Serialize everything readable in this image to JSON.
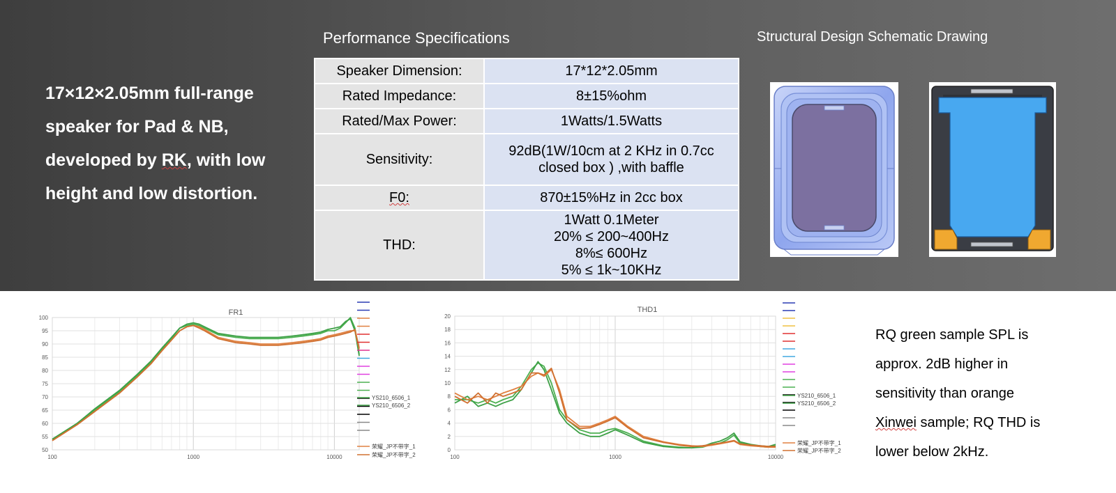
{
  "intro": {
    "line1": "17×12×2.05mm full-range",
    "line2": "speaker for Pad & NB,",
    "line3a": "developed by ",
    "line3b": "RK",
    "line3c": ", with low",
    "line4": "height and low distortion."
  },
  "specs": {
    "title": "Performance Specifications",
    "rows": [
      {
        "label": "Speaker Dimension:",
        "value": "17*12*2.05mm"
      },
      {
        "label": "Rated Impedance:",
        "value": "8±15%ohm"
      },
      {
        "label": "Rated/Max Power:",
        "value": "1Watts/1.5Watts"
      },
      {
        "label": "Sensitivity:",
        "value_line1": "92dB(1W/10cm at 2 KHz in 0.7cc",
        "value_line2": "closed box ) ,with baffle"
      },
      {
        "label": "F0:",
        "value": "870±15%Hz in 2cc box"
      },
      {
        "label": "THD:",
        "lines": [
          "1Watt 0.1Meter",
          "20% ≤ 200~400Hz",
          "8%≤ 600Hz",
          "5% ≤ 1k~10KHz"
        ]
      }
    ]
  },
  "schematic": {
    "title": "Structural Design Schematic Drawing"
  },
  "chart_data": [
    {
      "type": "line",
      "title": "FR1",
      "xscale": "log",
      "xlim": [
        100,
        15000
      ],
      "ylim": [
        50,
        100
      ],
      "xticks": [
        "100",
        "1000",
        "10000"
      ],
      "yticks": [
        "50",
        "55",
        "60",
        "65",
        "70",
        "75",
        "80",
        "85",
        "90",
        "95",
        "100"
      ],
      "grid": true,
      "legend_position": "right",
      "legend": [
        "YS210_6506_1",
        "YS210_6506_2",
        "荣耀_JP不带字_1",
        "荣耀_JP不带字_2"
      ],
      "series": [
        {
          "name": "YS210_6506_1",
          "color": "#4cb050",
          "x": [
            100,
            150,
            200,
            300,
            400,
            500,
            600,
            700,
            800,
            900,
            1000,
            1100,
            1200,
            1500,
            2000,
            2500,
            3000,
            4000,
            5000,
            6000,
            7000,
            8000,
            9000,
            10000,
            11000,
            12000,
            13000,
            14000,
            15000
          ],
          "y": [
            54,
            60,
            65,
            72,
            78,
            83,
            88,
            92,
            96,
            97,
            97.5,
            97,
            96,
            93.5,
            92.5,
            92,
            92,
            92,
            92.5,
            93,
            93.5,
            94,
            95,
            95,
            96,
            98,
            100,
            96,
            86
          ]
        },
        {
          "name": "YS210_6506_2",
          "color": "#3da046",
          "x": [
            100,
            150,
            200,
            300,
            400,
            500,
            600,
            700,
            800,
            900,
            1000,
            1100,
            1200,
            1500,
            2000,
            2500,
            3000,
            4000,
            5000,
            6000,
            7000,
            8000,
            9000,
            10000,
            11000,
            12000,
            13000,
            14000,
            15000
          ],
          "y": [
            54,
            60,
            65.5,
            72.5,
            78.5,
            83.5,
            88.5,
            92.5,
            96,
            97.5,
            98,
            97.5,
            96.5,
            94,
            93,
            92.5,
            92.5,
            92.5,
            93,
            93.5,
            94,
            94.5,
            95.5,
            96,
            96.5,
            98.5,
            99.5,
            95,
            85.5
          ]
        },
        {
          "name": "荣耀_JP不带字_1",
          "color": "#e08040",
          "x": [
            100,
            150,
            200,
            300,
            400,
            500,
            600,
            700,
            800,
            900,
            1000,
            1100,
            1200,
            1500,
            2000,
            2500,
            3000,
            4000,
            5000,
            6000,
            7000,
            8000,
            9000,
            10000,
            11000,
            12000,
            13000,
            14000,
            15000
          ],
          "y": [
            53.5,
            59.5,
            64.5,
            71.5,
            77.5,
            82.5,
            87.5,
            91.5,
            95,
            96.5,
            97,
            96.5,
            95.5,
            92.5,
            91,
            90.5,
            90,
            90,
            90.5,
            91,
            91.5,
            92,
            93,
            93.5,
            94,
            94.5,
            95,
            95,
            88
          ]
        },
        {
          "name": "荣耀_JP不带字_2",
          "color": "#d07030",
          "x": [
            100,
            150,
            200,
            300,
            400,
            500,
            600,
            700,
            800,
            900,
            1000,
            1100,
            1200,
            1500,
            2000,
            2500,
            3000,
            4000,
            5000,
            6000,
            7000,
            8000,
            9000,
            10000,
            11000,
            12000,
            13000,
            14000,
            15000
          ],
          "y": [
            53.5,
            59.5,
            64.5,
            71.5,
            77.5,
            82.5,
            87.5,
            91.5,
            95,
            96.5,
            97,
            96,
            95,
            92,
            90.5,
            90,
            89.5,
            89.5,
            90,
            90.5,
            91,
            91.5,
            92.5,
            93,
            93.5,
            94,
            94.5,
            95.5,
            88.5
          ]
        }
      ]
    },
    {
      "type": "line",
      "title": "THD1",
      "xscale": "log",
      "xlim": [
        100,
        10000
      ],
      "ylim": [
        0,
        20
      ],
      "xticks": [
        "100",
        "1000",
        "10000"
      ],
      "yticks": [
        "0",
        "2",
        "4",
        "6",
        "8",
        "10",
        "12",
        "14",
        "16",
        "18",
        "20"
      ],
      "grid": true,
      "legend_position": "right",
      "legend": [
        "YS210_6506_1",
        "YS210_6506_2",
        "荣耀_JP不带字_1",
        "荣耀_JP不带字_2"
      ],
      "series": [
        {
          "name": "YS210_6506_1",
          "color": "#4cb050",
          "x": [
            100,
            120,
            140,
            160,
            180,
            200,
            230,
            260,
            300,
            330,
            360,
            400,
            450,
            500,
            600,
            700,
            800,
            900,
            1000,
            1200,
            1500,
            2000,
            2500,
            3000,
            3500,
            4000,
            4500,
            5000,
            5500,
            6000,
            7000,
            8000,
            9000,
            10000
          ],
          "y": [
            7.5,
            7.5,
            7,
            7.5,
            7,
            7.5,
            8,
            9.5,
            12,
            13,
            12.5,
            10,
            6,
            4.5,
            3,
            2.5,
            2.5,
            3,
            3.2,
            2.5,
            1.3,
            0.6,
            0.4,
            0.3,
            0.4,
            0.8,
            1,
            1.5,
            2.2,
            1,
            0.7,
            0.5,
            0.4,
            0.6
          ]
        },
        {
          "name": "YS210_6506_2",
          "color": "#3da046",
          "x": [
            100,
            120,
            140,
            160,
            180,
            200,
            230,
            260,
            300,
            330,
            360,
            400,
            450,
            500,
            600,
            700,
            800,
            900,
            1000,
            1200,
            1500,
            2000,
            2500,
            3000,
            3500,
            4000,
            4500,
            5000,
            5500,
            6000,
            7000,
            8000,
            9000,
            10000
          ],
          "y": [
            7,
            8,
            6.5,
            7,
            6.5,
            7,
            7.5,
            9,
            11.5,
            13.2,
            12,
            9,
            5.5,
            4,
            2.5,
            2,
            2,
            2.5,
            3,
            2.2,
            1.1,
            0.5,
            0.3,
            0.3,
            0.5,
            1,
            1.3,
            1.8,
            2.5,
            1.2,
            0.8,
            0.6,
            0.5,
            0.8
          ]
        },
        {
          "name": "荣耀_JP不带字_1",
          "color": "#e08040",
          "x": [
            100,
            120,
            140,
            160,
            180,
            200,
            230,
            260,
            300,
            330,
            360,
            400,
            450,
            500,
            600,
            700,
            800,
            900,
            1000,
            1200,
            1500,
            2000,
            2500,
            3000,
            3500,
            4000,
            4500,
            5000,
            5500,
            6000,
            7000,
            8000,
            9000,
            10000
          ],
          "y": [
            8.5,
            7.5,
            8,
            7.5,
            8,
            8.5,
            9,
            9.5,
            11,
            11.5,
            11,
            12,
            9,
            5,
            3.5,
            3.5,
            4,
            4.5,
            5,
            3.5,
            2,
            1.2,
            0.8,
            0.6,
            0.5,
            0.7,
            0.9,
            1.1,
            1.3,
            0.8,
            0.6,
            0.5,
            0.4,
            0.4
          ]
        },
        {
          "name": "荣耀_JP不带字_2",
          "color": "#d07030",
          "x": [
            100,
            120,
            140,
            160,
            180,
            200,
            230,
            260,
            300,
            330,
            360,
            400,
            450,
            500,
            600,
            700,
            800,
            900,
            1000,
            1200,
            1500,
            2000,
            2500,
            3000,
            3500,
            4000,
            4500,
            5000,
            5500,
            6000,
            7000,
            8000,
            9000,
            10000
          ],
          "y": [
            8,
            7,
            8.5,
            7,
            8.5,
            8,
            8.5,
            9,
            11.5,
            11.5,
            11.2,
            12.2,
            8.5,
            4.5,
            3.2,
            3.3,
            3.8,
            4.3,
            4.8,
            3.3,
            1.8,
            1.1,
            0.7,
            0.5,
            0.6,
            0.8,
            1,
            1.2,
            1.4,
            0.9,
            0.7,
            0.6,
            0.5,
            0.5
          ]
        }
      ]
    }
  ],
  "note": {
    "line1": "RQ green sample SPL is",
    "line2": "approx. 2dB higher in",
    "line3": "sensitivity than orange",
    "line4a": "Xinwei",
    "line4b": " sample; RQ THD is",
    "line5": "lower below 2kHz."
  },
  "colors": {
    "green": "#4cb050",
    "orange": "#e08040",
    "cell_label": "#e4e4e4",
    "cell_value": "#dbe2f2"
  }
}
